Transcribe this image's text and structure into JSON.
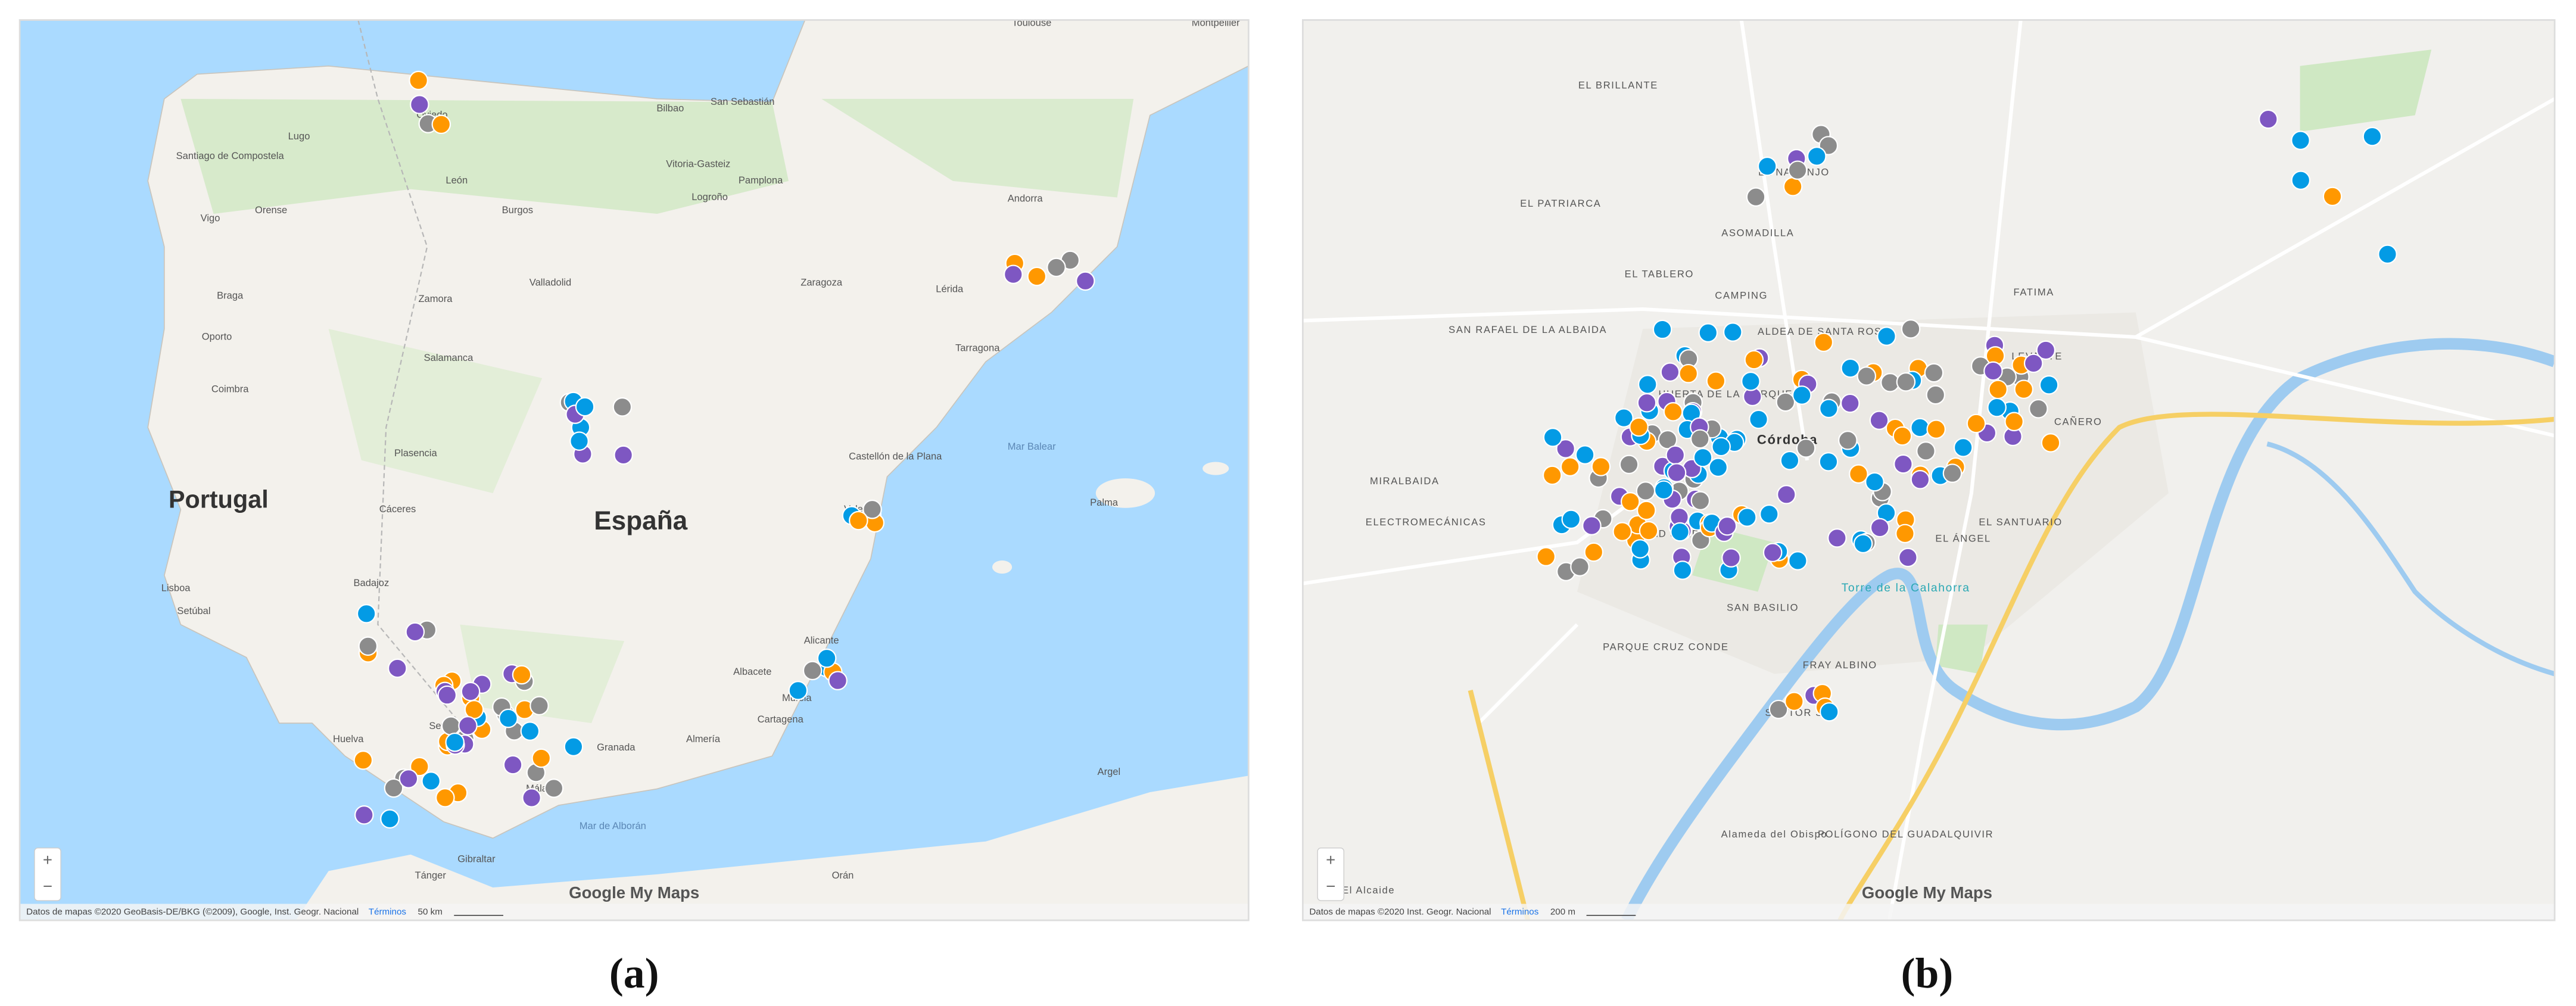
{
  "panels": [
    {
      "caption": "(a)",
      "labels": [
        "Portugal",
        "España",
        "Oporto",
        "Braga",
        "Coimbra",
        "Lisboa",
        "Setúbal",
        "Lugo",
        "Santiago de Compostela",
        "Orense",
        "Vigo",
        "Oviedo",
        "León",
        "Burgos",
        "Bilbao",
        "San Sebastián",
        "Vitoria-Gasteiz",
        "Pamplona",
        "Logroño",
        "Valladolid",
        "Zamora",
        "Salamanca",
        "Plasencia",
        "Cáceres",
        "Badajoz",
        "Huelva",
        "Sevilla",
        "Málaga",
        "Granada",
        "Almería",
        "Murcia",
        "Cartagena",
        "Alicante",
        "Albacete",
        "Valencia",
        "Castellón de la Plana",
        "Zaragoza",
        "Lérida",
        "Tarragona",
        "Andorra",
        "Toulouse",
        "Montpellier",
        "Palma",
        "Mar Balear",
        "Gibraltar",
        "Tánger",
        "Orán",
        "Argel",
        "Mar de Alborán"
      ],
      "zoom_in": "+",
      "zoom_out": "−",
      "brand": "Google My Maps",
      "attribution": "Datos de mapas ©2020 GeoBasis-DE/BKG (©2009), Google, Inst. Geogr. Nacional",
      "terms": "Términos",
      "scale": "50 km"
    },
    {
      "caption": "(b)",
      "labels": [
        "EL BRILLANTE",
        "EL NARANJO",
        "EL PATRIARCA",
        "ASOMADILLA",
        "EL TABLERO",
        "CAMPING",
        "FATIMA",
        "SAN RAFAEL DE LA ALBAIDA",
        "HUERTA DE LA MARQUESA",
        "ALDEA DE SANTA ROSA",
        "CAÑERO",
        "MIRALBAIDA",
        "ELECTROMECÁNICAS",
        "CIUDAD JARDÍN",
        "Córdoba",
        "LEVANTE",
        "EL SANTUARIO",
        "EL ÁNGEL",
        "SAN BASILIO",
        "Torre de la Calahorra",
        "PARQUE CRUZ CONDE",
        "FRAY ALBINO",
        "SECTOR SUR",
        "Alameda del Obispo",
        "POLÍGONO DEL GUADALQUIVIR",
        "El Alcaide"
      ],
      "zoom_in": "+",
      "zoom_out": "−",
      "brand": "Google My Maps",
      "attribution": "Datos de mapas ©2020 Inst. Geogr. Nacional",
      "terms": "Términos",
      "scale": "200 m"
    }
  ]
}
